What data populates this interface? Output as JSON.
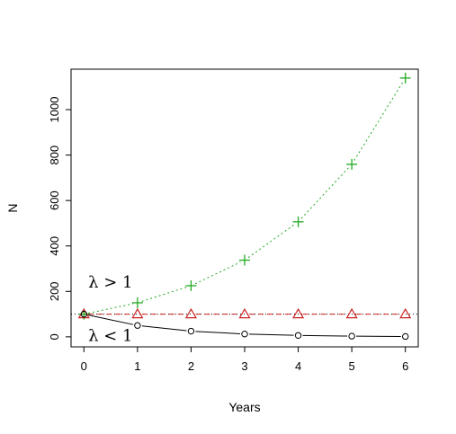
{
  "chart_data": {
    "type": "line",
    "title": "",
    "xlabel": "Years",
    "ylabel": "N",
    "xlim": [
      -0.24,
      6.24
    ],
    "ylim": [
      -44,
      1178
    ],
    "x_ticks": [
      0,
      1,
      2,
      3,
      4,
      5,
      6
    ],
    "y_ticks": [
      0,
      200,
      400,
      600,
      800,
      1000
    ],
    "grid": false,
    "legend": "none",
    "x": [
      0,
      1,
      2,
      3,
      4,
      5,
      6
    ],
    "series": [
      {
        "values": [
          100,
          150,
          225,
          337.5,
          506.25,
          759.4,
          1139.1
        ],
        "color": "#22aa22",
        "line_style": "dotted",
        "marker": "plus"
      },
      {
        "values": [
          100,
          100,
          100,
          100,
          100,
          100,
          100
        ],
        "color": "#cc2222",
        "line_style": "dashed",
        "marker": "triangle"
      },
      {
        "values": [
          100,
          50,
          25,
          12.5,
          6.25,
          3.1,
          1.6
        ],
        "color": "#000000",
        "line_style": "solid",
        "marker": "circle"
      }
    ],
    "annotations": [
      {
        "text": "λ > 1",
        "x": 0.5,
        "y": 240
      },
      {
        "text": "λ < 1",
        "x": 0.5,
        "y": 5
      }
    ]
  }
}
